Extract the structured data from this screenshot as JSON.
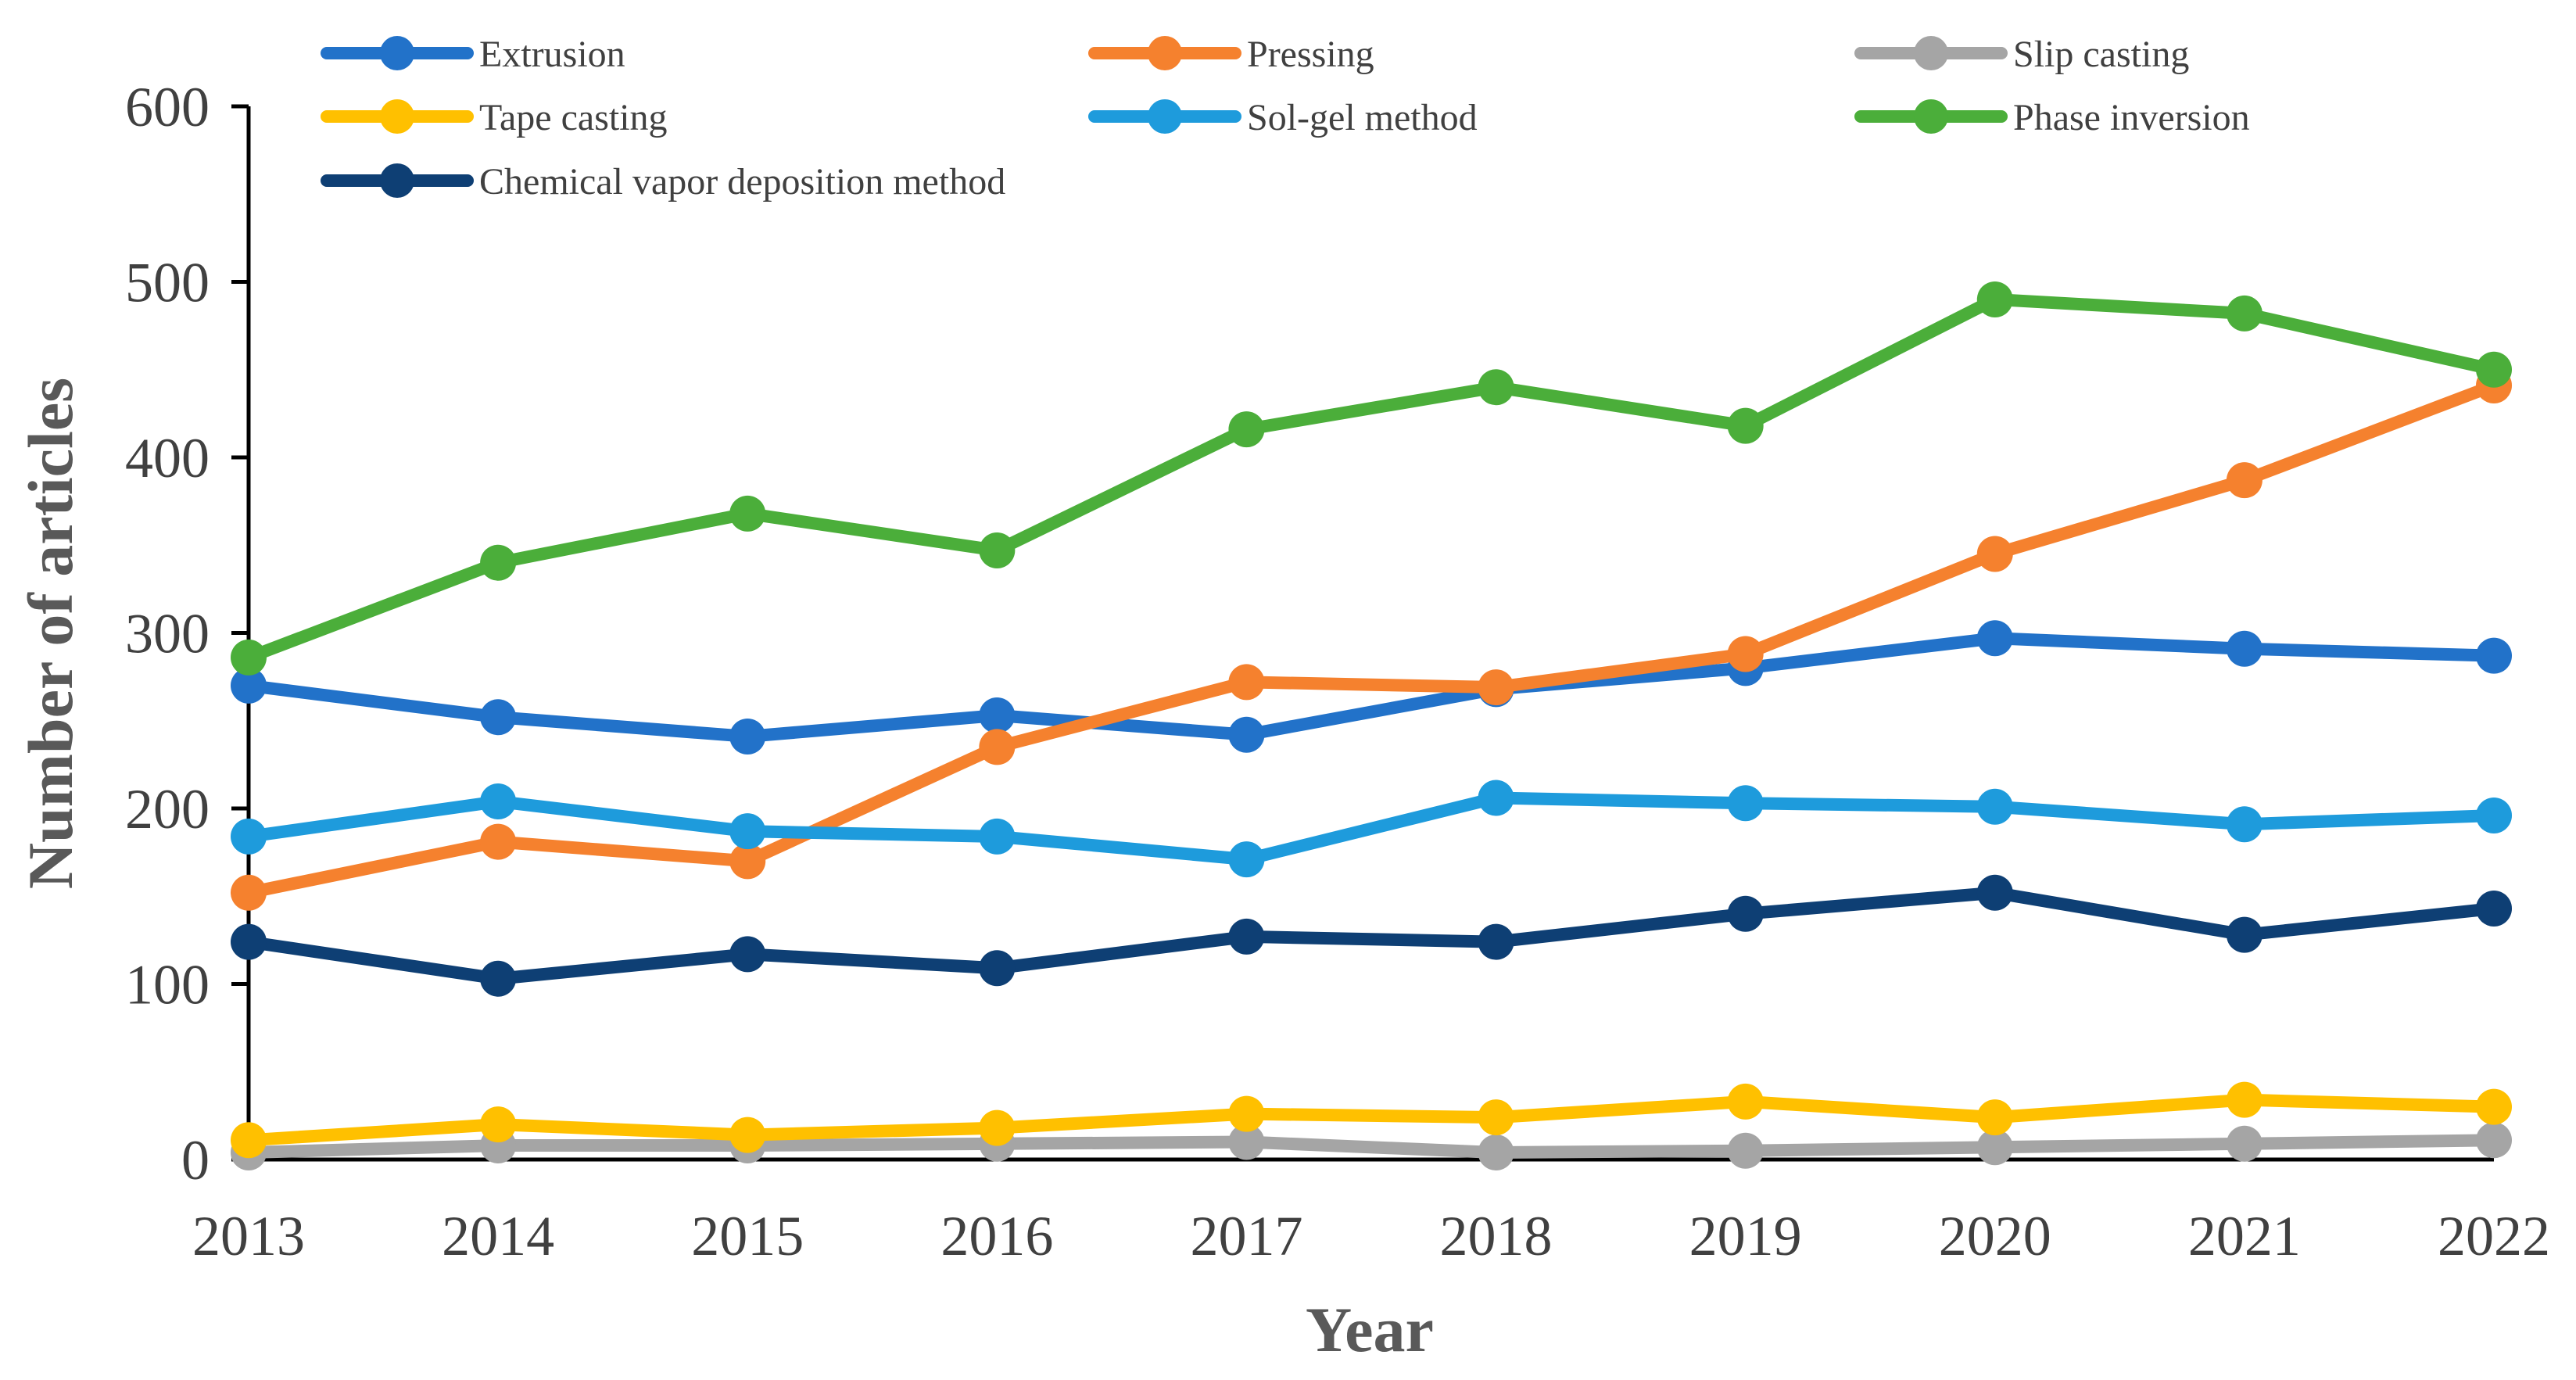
{
  "chart_data": {
    "type": "line",
    "title": "",
    "xlabel": "Year",
    "ylabel": "Number of articles",
    "categories": [
      "2013",
      "2014",
      "2015",
      "2016",
      "2017",
      "2018",
      "2019",
      "2020",
      "2021",
      "2022"
    ],
    "ylim": [
      0,
      600
    ],
    "yticks": [
      "0",
      "100",
      "200",
      "300",
      "400",
      "500",
      "600"
    ],
    "grid": false,
    "legend_position": "top",
    "series": [
      {
        "name": "Extrusion",
        "color": "#2272C9",
        "values": [
          270,
          252,
          241,
          253,
          242,
          268,
          280,
          297,
          291,
          287
        ]
      },
      {
        "name": "Pressing",
        "color": "#F5812E",
        "values": [
          152,
          181,
          170,
          235,
          272,
          269,
          288,
          345,
          387,
          441
        ]
      },
      {
        "name": "Slip casting",
        "color": "#A5A5A5",
        "values": [
          4,
          8,
          8,
          9,
          10,
          4,
          5,
          7,
          9,
          11
        ]
      },
      {
        "name": "Tape casting",
        "color": "#FFC000",
        "values": [
          11,
          20,
          14,
          18,
          26,
          24,
          33,
          24,
          34,
          30
        ]
      },
      {
        "name": "Sol-gel method",
        "color": "#1E9BDC",
        "values": [
          184,
          204,
          187,
          184,
          171,
          206,
          203,
          201,
          191,
          196
        ]
      },
      {
        "name": "Phase inversion",
        "color": "#4BAE3A",
        "values": [
          286,
          340,
          368,
          347,
          416,
          440,
          418,
          490,
          482,
          450
        ]
      },
      {
        "name": "Chemical vapor deposition method",
        "color": "#0E3F74",
        "values": [
          124,
          103,
          117,
          109,
          127,
          124,
          140,
          152,
          128,
          143
        ]
      }
    ]
  }
}
